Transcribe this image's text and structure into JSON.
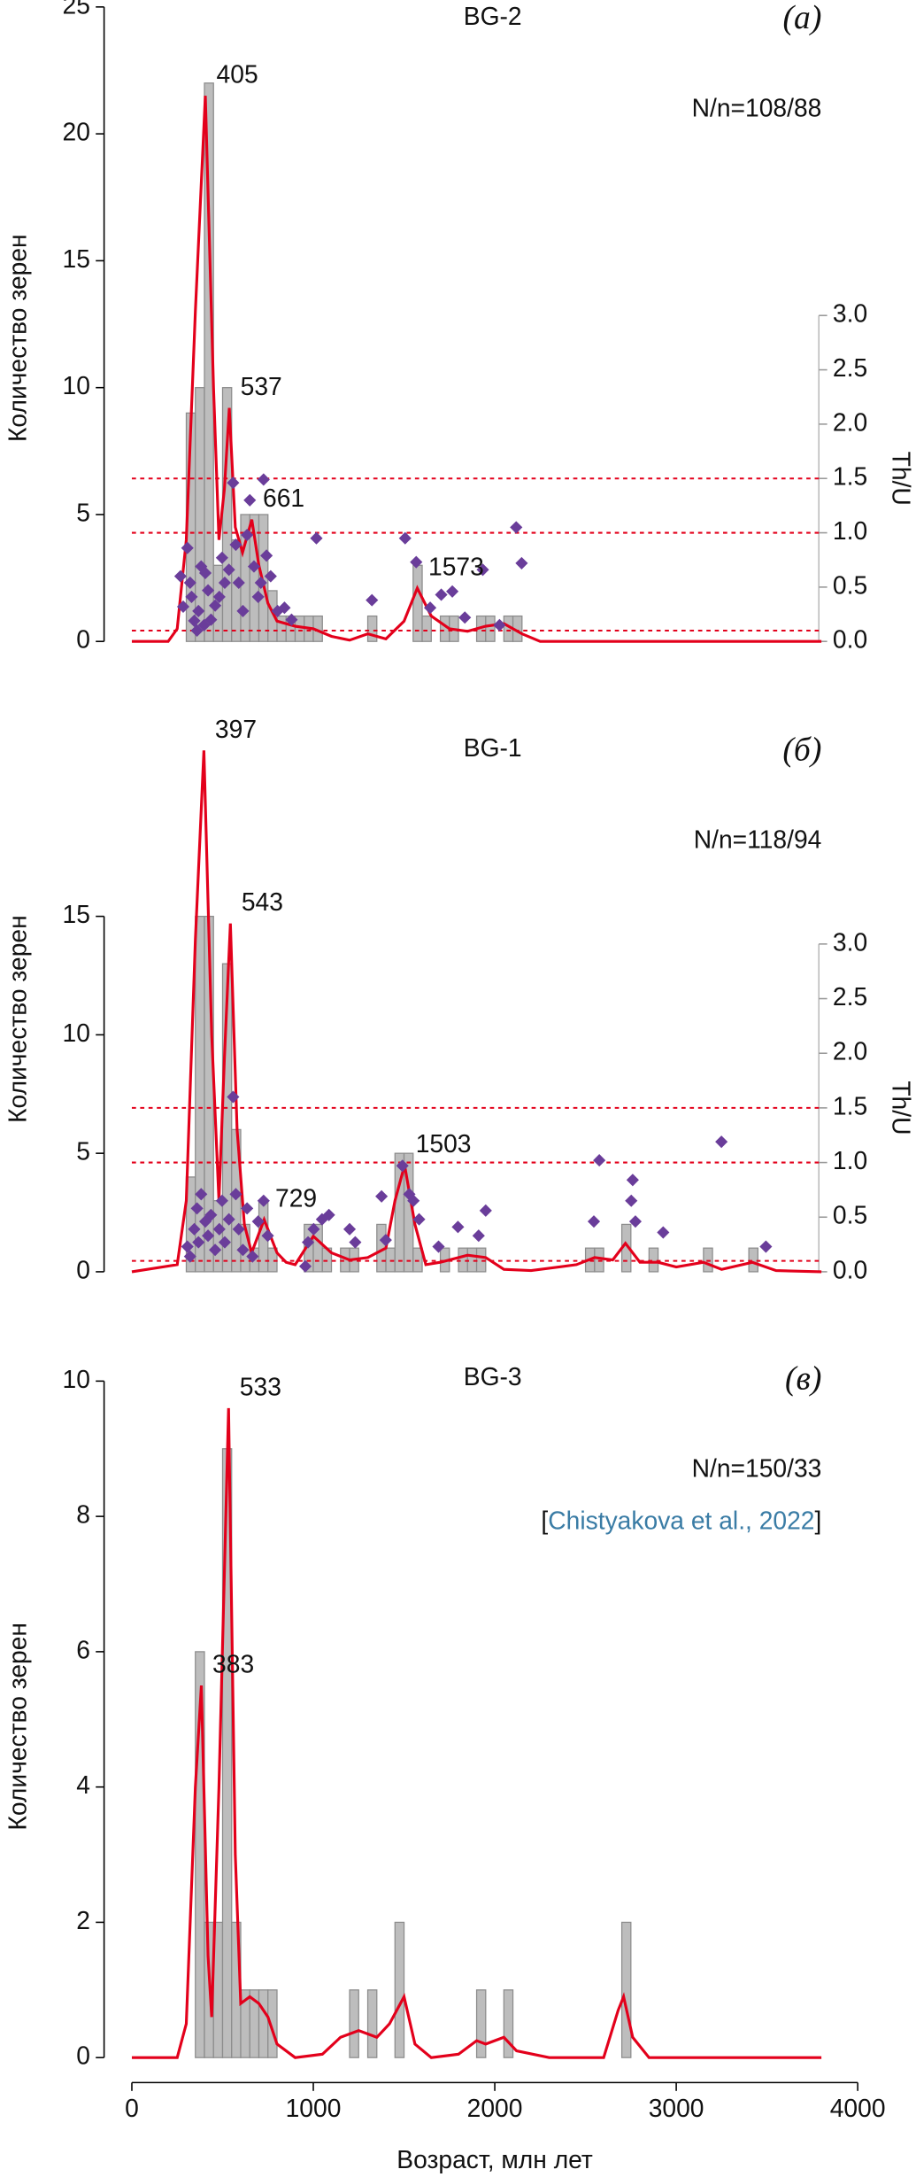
{
  "chart_data": [
    {
      "type": "histogram",
      "title": "BG-2",
      "tag": "(а)",
      "note": "N/n=108/88",
      "ylabel": "Количество зерен",
      "y2label": "Th/U",
      "xlim": [
        0,
        4000
      ],
      "ylim": [
        0,
        25
      ],
      "yticks": [
        0,
        5,
        10,
        15,
        20,
        25
      ],
      "y2lim": [
        0,
        5.84
      ],
      "y2ticks": [
        {
          "value": 0,
          "label": "0.0"
        },
        {
          "value": 0.5,
          "label": "0.5"
        },
        {
          "value": 1,
          "label": "1.0"
        },
        {
          "value": 1.5,
          "label": "1.5"
        },
        {
          "value": 2,
          "label": "2.0"
        },
        {
          "value": 2.5,
          "label": "2.5"
        },
        {
          "value": 3,
          "label": "3.0"
        }
      ],
      "histogram": {
        "color": "#bdbdbd",
        "bins": [
          250,
          300,
          350,
          400,
          450,
          500,
          550,
          600,
          650,
          700,
          750,
          800,
          850,
          900,
          950,
          1000,
          1050,
          1100,
          1150,
          1200,
          1250,
          1300,
          1350,
          1400,
          1450,
          1500,
          1550,
          1600,
          1650,
          1700,
          1750,
          1800,
          1850,
          1900,
          1950,
          2000,
          2050,
          2100,
          2150,
          2200
        ],
        "values": [
          0,
          9,
          10,
          22,
          3,
          10,
          4,
          5,
          5,
          5,
          2,
          1,
          1,
          1,
          1,
          1,
          0,
          0,
          0,
          0,
          0,
          1,
          0,
          0,
          0,
          0,
          3,
          1,
          0,
          1,
          1,
          0,
          0,
          1,
          1,
          0,
          1,
          1,
          0
        ]
      },
      "density": {
        "color": "#e3001b",
        "x": [
          0,
          200,
          250,
          300,
          350,
          405,
          450,
          480,
          510,
          537,
          570,
          610,
          661,
          700,
          750,
          800,
          900,
          1000,
          1100,
          1200,
          1300,
          1400,
          1500,
          1573,
          1650,
          1750,
          1850,
          1950,
          2050,
          2150,
          2250,
          3800
        ],
        "values": [
          0,
          0,
          0.5,
          4,
          13,
          21.5,
          10,
          4,
          6,
          9.2,
          4.5,
          3.5,
          4.8,
          3,
          1.5,
          0.8,
          0.6,
          0.5,
          0.2,
          0.05,
          0.3,
          0.1,
          0.8,
          2.1,
          1,
          0.5,
          0.4,
          0.6,
          0.7,
          0.3,
          0,
          0
        ]
      },
      "scatter": {
        "color": "#6a3d9a",
        "axis": "y2",
        "x": [
          306,
          321,
          283,
          344,
          359,
          329,
          382,
          405,
          420,
          367,
          398,
          436,
          459,
          482,
          512,
          535,
          558,
          573,
          589,
          612,
          497,
          635,
          650,
          673,
          696,
          726,
          711,
          742,
          765,
          803,
          841,
          880,
          268,
          1017,
          1323,
          1567,
          1506,
          1644,
          1705,
          1766,
          1835,
          1934,
          2026,
          2118,
          2148
        ],
        "values": [
          0.86,
          0.54,
          0.32,
          0.19,
          0.1,
          0.41,
          0.69,
          0.63,
          0.47,
          0.28,
          0.15,
          0.2,
          0.33,
          0.41,
          0.54,
          0.66,
          1.46,
          0.89,
          0.54,
          0.28,
          0.77,
          0.98,
          1.3,
          0.69,
          0.41,
          1.49,
          0.54,
          0.79,
          0.6,
          0.28,
          0.31,
          0.2,
          0.6,
          0.95,
          0.38,
          0.73,
          0.95,
          0.31,
          0.43,
          0.46,
          0.22,
          0.66,
          0.15,
          1.05,
          0.72
        ]
      },
      "y2_reference_lines": [
        0.1,
        1,
        1.5
      ],
      "peak_labels": [
        405,
        537,
        661,
        1573
      ]
    },
    {
      "type": "histogram",
      "title": "BG-1",
      "tag": "(б)",
      "note": "N/n=118/94",
      "ylabel": "Количество зерен",
      "y2label": "Th/U",
      "xlim": [
        0,
        4000
      ],
      "ylim": [
        0,
        22.5
      ],
      "yticks": [
        0,
        5,
        10,
        15
      ],
      "y2lim": [
        0,
        4.88
      ],
      "y2ticks": [
        {
          "value": 0,
          "label": "0.0"
        },
        {
          "value": 0.5,
          "label": "0.5"
        },
        {
          "value": 1,
          "label": "1.0"
        },
        {
          "value": 1.5,
          "label": "1.5"
        },
        {
          "value": 2,
          "label": "2.0"
        },
        {
          "value": 2.5,
          "label": "2.5"
        },
        {
          "value": 3,
          "label": "3.0"
        }
      ],
      "histogram": {
        "color": "#bdbdbd",
        "bins": [
          250,
          300,
          350,
          400,
          450,
          500,
          550,
          600,
          650,
          700,
          750,
          800,
          850,
          900,
          950,
          1000,
          1050,
          1100,
          1150,
          1200,
          1250,
          1300,
          1350,
          1400,
          1450,
          1500,
          1550,
          1600,
          1650,
          1700,
          1750,
          1800,
          1850,
          1900,
          1950,
          2000,
          2050,
          2100,
          2150,
          2200,
          2250,
          2300,
          2350,
          2400,
          2450,
          2500,
          2550,
          2600,
          2650,
          2700,
          2750,
          2800,
          2850,
          2900,
          2950,
          3000,
          3050,
          3100,
          3150,
          3200,
          3250,
          3300,
          3350,
          3400,
          3450,
          3500
        ],
        "values": [
          0,
          4,
          15,
          15,
          3,
          13,
          6,
          2,
          1,
          3,
          1,
          0,
          0,
          0,
          2,
          2,
          1,
          0,
          1,
          1,
          0,
          0,
          2,
          1,
          5,
          5,
          1,
          0,
          0,
          1,
          0,
          1,
          1,
          1,
          0,
          0,
          0,
          0,
          0,
          0,
          0,
          0,
          0,
          0,
          0,
          1,
          1,
          0,
          0,
          2,
          0,
          0,
          1,
          0,
          0,
          0,
          0,
          0,
          1,
          0,
          0,
          0,
          0,
          1,
          0
        ]
      },
      "density": {
        "color": "#e3001b",
        "x": [
          0,
          250,
          300,
          350,
          397,
          440,
          480,
          510,
          543,
          580,
          620,
          660,
          729,
          800,
          850,
          900,
          1000,
          1100,
          1200,
          1300,
          1400,
          1450,
          1503,
          1560,
          1620,
          1700,
          1850,
          1950,
          2050,
          2200,
          2450,
          2550,
          2650,
          2720,
          2800,
          2900,
          3000,
          3150,
          3250,
          3420,
          3550,
          3800
        ],
        "values": [
          0,
          0.3,
          3,
          14,
          22,
          10,
          3,
          9,
          14.7,
          6,
          2,
          0.8,
          2.2,
          0.8,
          0.4,
          0.3,
          1.5,
          0.8,
          0.5,
          0.6,
          1,
          3,
          4.5,
          2,
          0.3,
          0.4,
          0.7,
          0.6,
          0.1,
          0.05,
          0.3,
          0.6,
          0.5,
          1.2,
          0.4,
          0.4,
          0.2,
          0.4,
          0.1,
          0.4,
          0.05,
          0
        ]
      },
      "scatter": {
        "color": "#6a3d9a",
        "axis": "y2",
        "x": [
          306,
          321,
          344,
          359,
          382,
          367,
          405,
          420,
          436,
          459,
          482,
          497,
          512,
          535,
          558,
          573,
          589,
          612,
          635,
          665,
          696,
          726,
          749,
          956,
          971,
          1002,
          1048,
          1086,
          1200,
          1231,
          1376,
          1399,
          1491,
          1529,
          1552,
          1583,
          1690,
          1797,
          1911,
          1950,
          2546,
          2576,
          2752,
          2760,
          2775,
          2928,
          3249,
          3494
        ],
        "values": [
          0.23,
          0.14,
          0.39,
          0.58,
          0.71,
          0.27,
          0.46,
          0.33,
          0.52,
          0.2,
          0.39,
          0.65,
          0.27,
          0.48,
          1.6,
          0.71,
          0.39,
          0.2,
          0.58,
          0.14,
          0.46,
          0.65,
          0.33,
          0.05,
          0.27,
          0.39,
          0.48,
          0.52,
          0.39,
          0.27,
          0.69,
          0.29,
          0.97,
          0.71,
          0.65,
          0.48,
          0.23,
          0.41,
          0.33,
          0.56,
          0.46,
          1.02,
          0.65,
          0.84,
          0.46,
          0.36,
          1.19,
          0.23
        ]
      },
      "y2_reference_lines": [
        0.1,
        1,
        1.5
      ],
      "peak_labels": [
        397,
        543,
        729,
        1503
      ]
    },
    {
      "type": "histogram",
      "title": "BG-3",
      "tag": "(в)",
      "note": "N/n=150/33",
      "citation": [
        "[",
        "Chistyakova et al., 2022",
        "]"
      ],
      "ylabel": "Количество зерен",
      "xlabel": "Возраст, млн лет",
      "xlim": [
        0,
        4000
      ],
      "xticks": [
        0,
        1000,
        2000,
        3000,
        4000
      ],
      "ylim": [
        0,
        10.2
      ],
      "yticks": [
        0,
        2,
        4,
        6,
        8,
        10
      ],
      "histogram": {
        "color": "#bdbdbd",
        "bins": [
          350,
          400,
          450,
          500,
          550,
          600,
          650,
          700,
          750,
          800,
          850,
          900,
          950,
          1000,
          1050,
          1100,
          1150,
          1200,
          1250,
          1300,
          1350,
          1400,
          1450,
          1500,
          1550,
          1600,
          1650,
          1700,
          1750,
          1800,
          1850,
          1900,
          1950,
          2000,
          2050,
          2100,
          2150,
          2200,
          2250,
          2300,
          2350,
          2400,
          2450,
          2500,
          2550,
          2600,
          2650,
          2700,
          2750
        ],
        "values": [
          6,
          2,
          2,
          9,
          2,
          1,
          1,
          1,
          1,
          0,
          0,
          0,
          0,
          0,
          0,
          0,
          0,
          1,
          0,
          1,
          0,
          0,
          2,
          0,
          0,
          0,
          0,
          0,
          0,
          0,
          0,
          1,
          0,
          0,
          1,
          0,
          0,
          0,
          0,
          0,
          0,
          0,
          0,
          0,
          0,
          0,
          0,
          2
        ]
      },
      "density": {
        "color": "#e3001b",
        "x": [
          0,
          250,
          300,
          350,
          383,
          420,
          440,
          480,
          533,
          570,
          600,
          650,
          700,
          750,
          800,
          900,
          1050,
          1150,
          1250,
          1350,
          1420,
          1500,
          1560,
          1650,
          1800,
          1900,
          1950,
          2050,
          2120,
          2300,
          2600,
          2680,
          2710,
          2760,
          2850,
          3800
        ],
        "values": [
          0,
          0,
          0.5,
          4,
          5.5,
          1.5,
          0.6,
          4,
          9.6,
          3,
          0.8,
          0.9,
          0.8,
          0.6,
          0.2,
          0,
          0.05,
          0.3,
          0.4,
          0.3,
          0.5,
          0.9,
          0.2,
          0,
          0.05,
          0.25,
          0.2,
          0.3,
          0.1,
          0,
          0,
          0.7,
          0.9,
          0.3,
          0,
          0
        ]
      },
      "peak_labels": [
        383,
        533
      ]
    }
  ]
}
